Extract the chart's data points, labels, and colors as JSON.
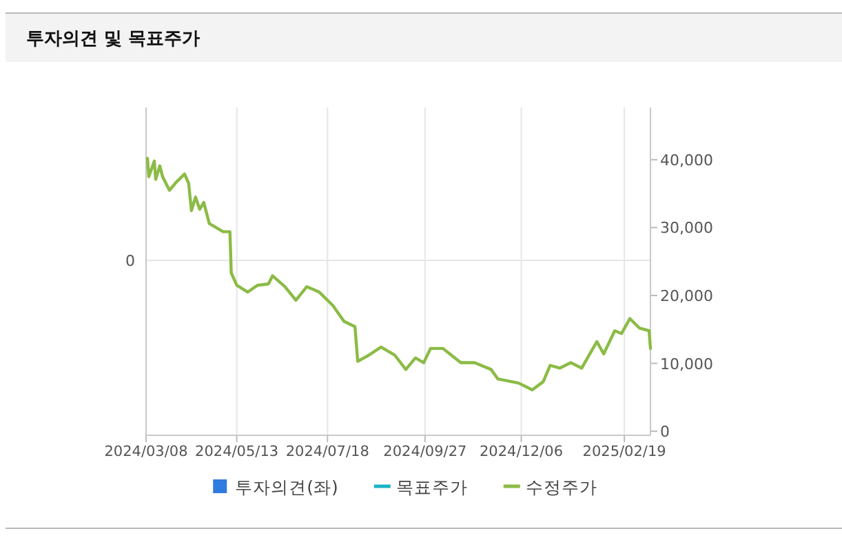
{
  "chart_data": {
    "type": "line",
    "title": "투자의견 및 목표주가",
    "xlim": [
      "2024-03-08",
      "2025-03-10"
    ],
    "xticks": [
      {
        "value": "2024-03-08",
        "label": "2024/03/08"
      },
      {
        "value": "2024-05-13",
        "label": "2024/05/13"
      },
      {
        "value": "2024-07-18",
        "label": "2024/07/18"
      },
      {
        "value": "2024-09-27",
        "label": "2024/09/27"
      },
      {
        "value": "2024-12-06",
        "label": "2024/12/06"
      },
      {
        "value": "2025-02-19",
        "label": "2025/02/19"
      }
    ],
    "annotations": [
      "0"
    ],
    "y2lim": [
      -600,
      47700
    ],
    "y2ticks": [
      0,
      {
        "value": 10000,
        "label": "10,000"
      },
      {
        "value": 20000,
        "label": "20,000"
      },
      {
        "value": 30000,
        "label": "30,000"
      },
      {
        "value": 40000,
        "label": "40,000"
      }
    ],
    "grid": true,
    "legend": "bottom",
    "series": [
      {
        "name": "투자의견(좌)",
        "type": "scatter",
        "marker": "square",
        "color": "#2f7be0"
      },
      {
        "name": "목표주가",
        "type": "line",
        "color": "#1ab3c8"
      },
      {
        "name": "수정주가",
        "color": "#8bbb45",
        "axis": "y2",
        "x": [
          "2024-03-09",
          "2024-03-10",
          "2024-03-14",
          "2024-03-15",
          "2024-03-18",
          "2024-03-20",
          "2024-03-25",
          "2024-03-30",
          "2024-04-05",
          "2024-04-08",
          "2024-04-10",
          "2024-04-13",
          "2024-04-16",
          "2024-04-19",
          "2024-04-23",
          "2024-04-28",
          "2024-05-03",
          "2024-05-08",
          "2024-05-09",
          "2024-05-13",
          "2024-05-21",
          "2024-05-28",
          "2024-06-05",
          "2024-06-08",
          "2024-06-17",
          "2024-06-25",
          "2024-07-03",
          "2024-07-12",
          "2024-07-22",
          "2024-07-30",
          "2024-08-07",
          "2024-08-09",
          "2024-08-17",
          "2024-08-26",
          "2024-09-05",
          "2024-09-13",
          "2024-09-20",
          "2024-09-26",
          "2024-10-01",
          "2024-10-10",
          "2024-10-23",
          "2024-11-02",
          "2024-11-14",
          "2024-11-19",
          "2024-12-04",
          "2024-12-14",
          "2024-12-22",
          "2024-12-27",
          "2025-01-03",
          "2025-01-11",
          "2025-01-19",
          "2025-01-26",
          "2025-01-30",
          "2025-02-04",
          "2025-02-12",
          "2025-02-17",
          "2025-02-23",
          "2025-03-02",
          "2025-03-09",
          "2025-03-10"
        ],
        "values": [
          40200,
          37500,
          39800,
          37100,
          39100,
          37500,
          35500,
          36700,
          37900,
          36500,
          32500,
          34500,
          32700,
          33700,
          30600,
          30000,
          29400,
          29400,
          23300,
          21500,
          20500,
          21500,
          21700,
          22900,
          21300,
          19300,
          21300,
          20500,
          18500,
          16200,
          15400,
          10300,
          11200,
          12400,
          11200,
          9100,
          10800,
          10100,
          12200,
          12200,
          10100,
          10100,
          9100,
          7700,
          7100,
          6100,
          7300,
          9700,
          9300,
          10100,
          9300,
          11800,
          13200,
          11400,
          14800,
          14400,
          16600,
          15200,
          14800,
          12200
        ]
      }
    ]
  }
}
